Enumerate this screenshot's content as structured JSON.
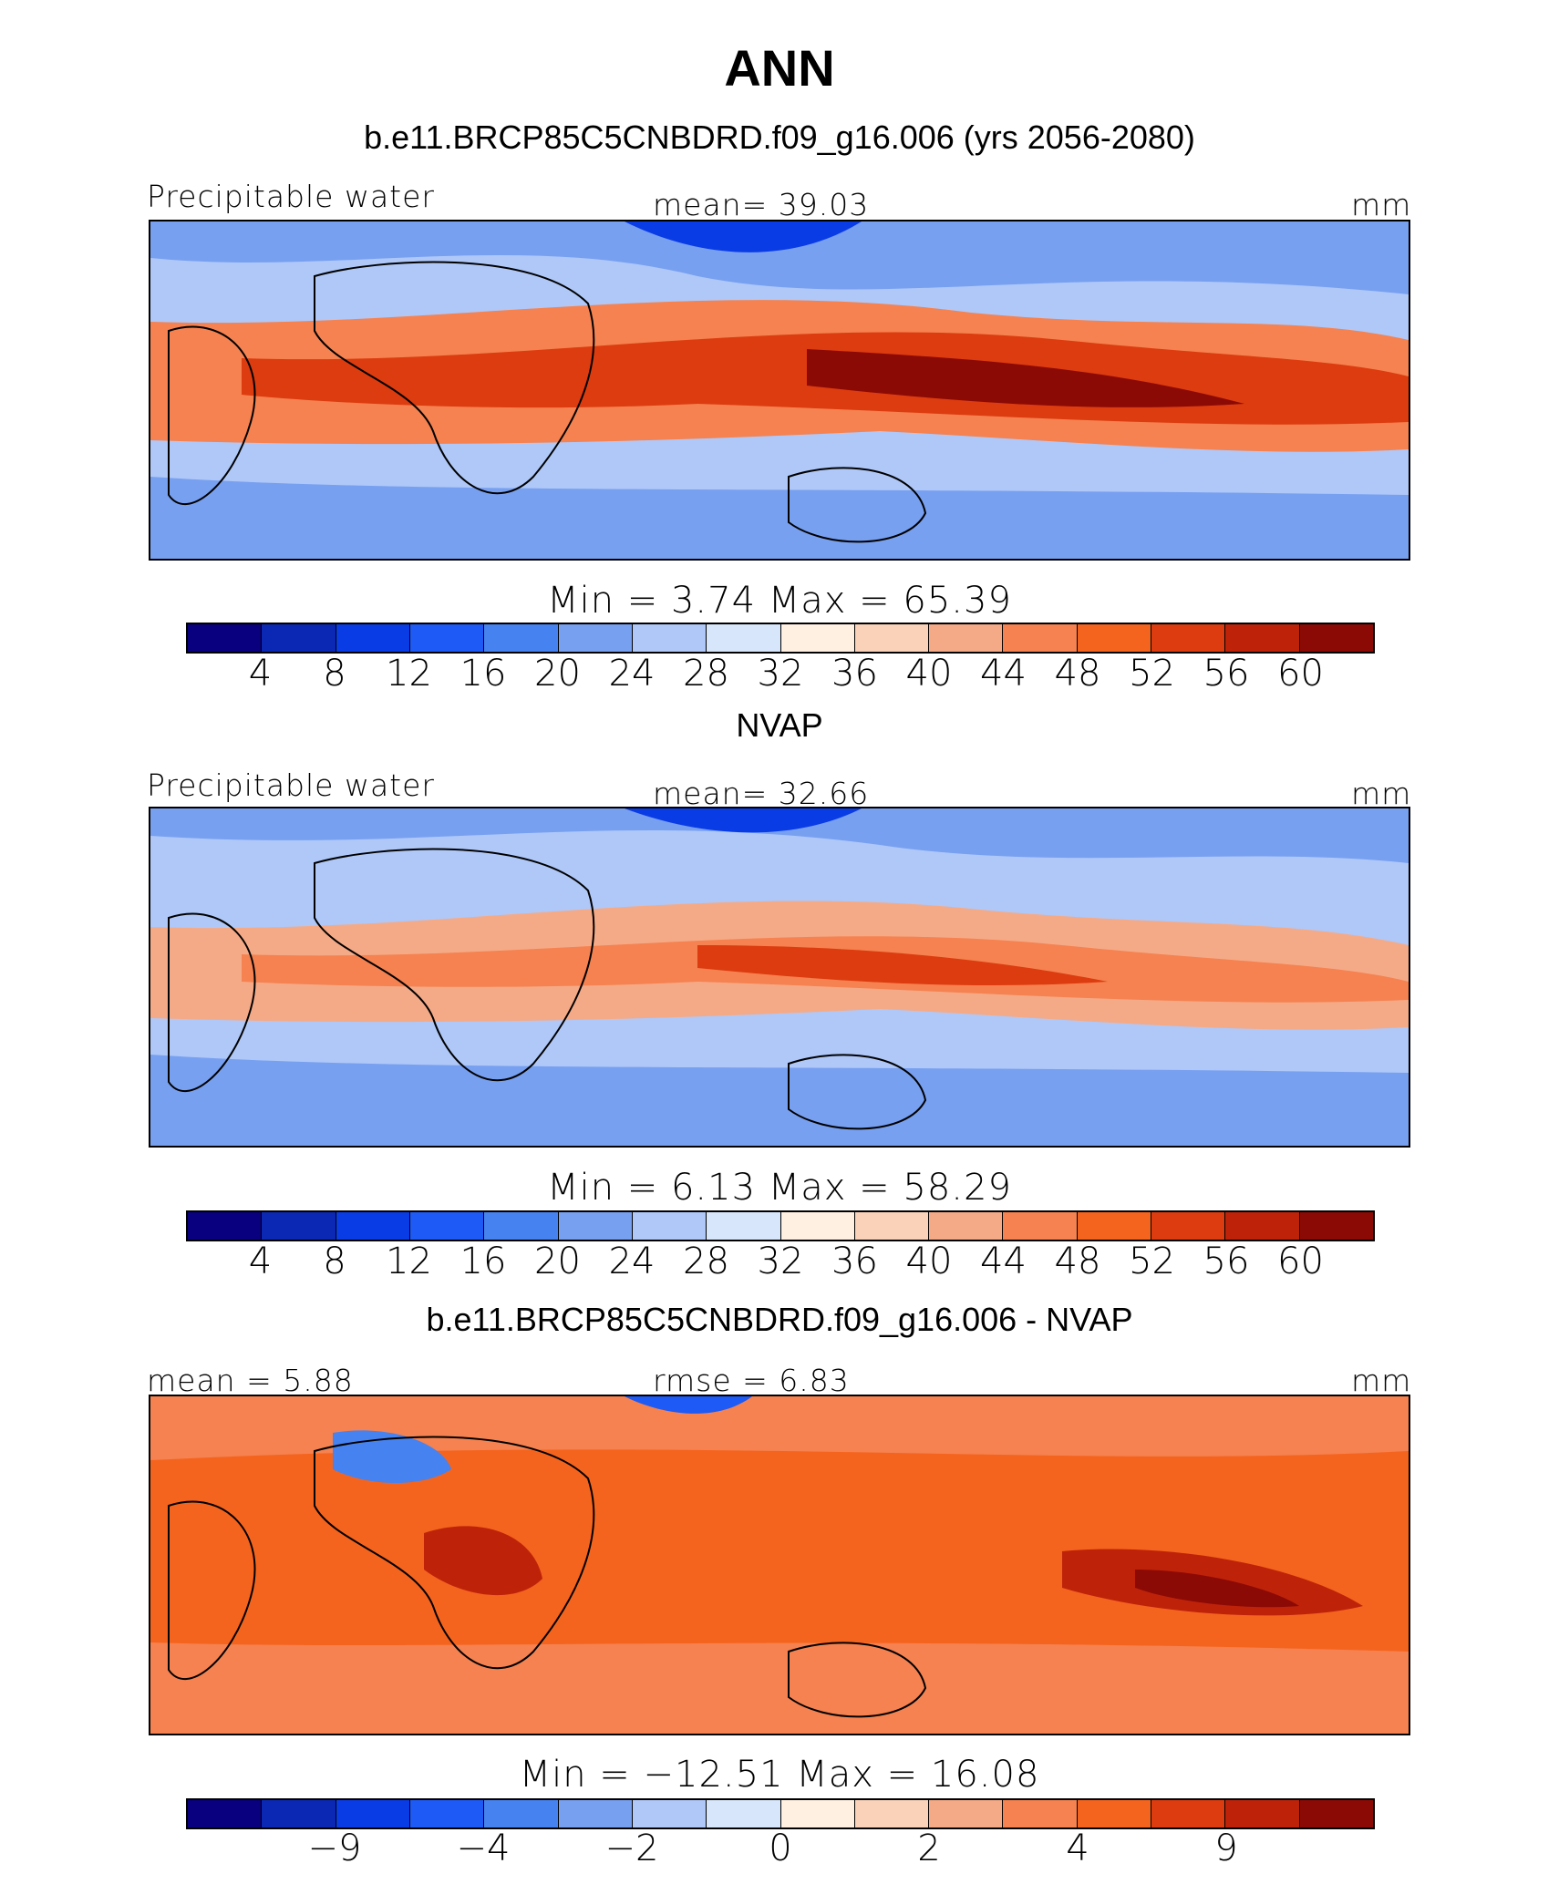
{
  "title": "ANN",
  "colors": [
    "#08007f",
    "#0a28b4",
    "#0a3ce6",
    "#1e5af5",
    "#4682f0",
    "#78a0f0",
    "#afc8f8",
    "#d7e6fa",
    "#fff0e1",
    "#fad2b9",
    "#f5aa87",
    "#f58250",
    "#f5641e",
    "#dc3c0f",
    "#be230a",
    "#8c0a05"
  ],
  "land_outline_color": "#000000",
  "panels": [
    {
      "subtitle": "b.e11.BRCP85C5CNBDRD.f09_g16.006 (yrs 2056-2080)",
      "left_label": "Precipitable water",
      "center_label": "mean=  39.03",
      "right_label": "mm",
      "minmax": "Min =    3.74  Max =   65.39",
      "ticks": [
        "4",
        "8",
        "12",
        "16",
        "20",
        "24",
        "28",
        "32",
        "36",
        "40",
        "44",
        "48",
        "52",
        "56",
        "60"
      ]
    },
    {
      "subtitle": "NVAP",
      "left_label": "Precipitable water",
      "center_label": "mean=  32.66",
      "right_label": "mm",
      "minmax": "Min =    6.13  Max =   58.29",
      "ticks": [
        "4",
        "8",
        "12",
        "16",
        "20",
        "24",
        "28",
        "32",
        "36",
        "40",
        "44",
        "48",
        "52",
        "56",
        "60"
      ]
    },
    {
      "subtitle": "b.e11.BRCP85C5CNBDRD.f09_g16.006 - NVAP",
      "left_label": "mean =   5.88",
      "center_label": "rmse =    6.83",
      "right_label": "mm",
      "minmax": "Min = −12.51  Max =   16.08",
      "ticks": [
        "−9",
        "−4",
        "−2",
        "0",
        "2",
        "4",
        "9"
      ]
    }
  ]
}
